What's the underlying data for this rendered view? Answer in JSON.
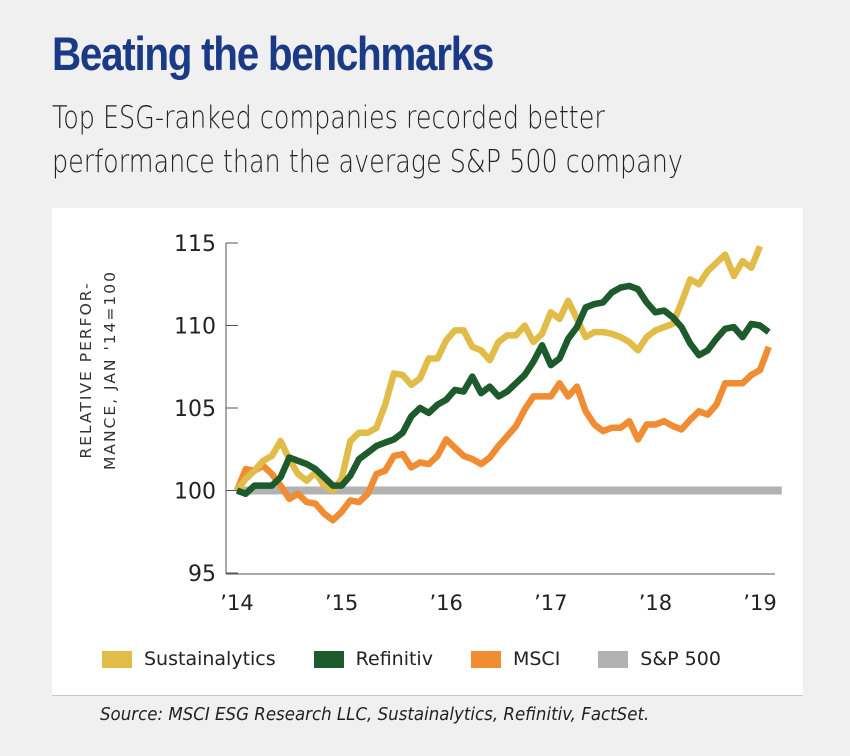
{
  "header": {
    "title": "Beating the benchmarks",
    "subtitle_line1": "Top ESG-ranked companies recorded better",
    "subtitle_line2": "performance than the average S&P 500 company"
  },
  "footer": {
    "source": "Source: MSCI ESG Research LLC, Sustainalytics, Refinitiv, FactSet."
  },
  "chart_data": {
    "type": "line",
    "title": "Beating the benchmarks",
    "subtitle": "Top ESG-ranked companies recorded better performance than the average S&P 500 company",
    "xlabel": "",
    "ylabel_line1": "RELATIVE PERFOR-",
    "ylabel_line2": "MANCE, JAN '14=100",
    "ylim": [
      95,
      115
    ],
    "yticks": [
      95,
      100,
      105,
      110,
      115
    ],
    "ytick_labels": [
      "95",
      "100",
      "105",
      "110",
      "115"
    ],
    "xlim_months": [
      0,
      62.5
    ],
    "xticks_months": [
      0,
      12,
      24,
      36,
      48,
      60
    ],
    "xtick_labels": [
      "’14",
      "’15",
      "’16",
      "’17",
      "’18",
      "’19"
    ],
    "x_unit": "months since Jan 2014 (monthly observations)",
    "grid": false,
    "legend_position": "bottom",
    "series": [
      {
        "name": "Sustainalytics",
        "color": "#e2bc48",
        "values": [
          100,
          100.7,
          101.2,
          101.8,
          102.1,
          103.0,
          101.9,
          101.0,
          100.6,
          101.1,
          100.3,
          100.0,
          100.7,
          103.0,
          103.5,
          103.5,
          103.8,
          105.2,
          107.1,
          107.0,
          106.4,
          106.8,
          108.0,
          108.0,
          109.1,
          109.7,
          109.7,
          108.7,
          108.5,
          107.9,
          109.0,
          109.4,
          109.4,
          110.0,
          109.0,
          109.5,
          110.8,
          110.4,
          111.5,
          110.4,
          109.3,
          109.6,
          109.6,
          109.5,
          109.3,
          109.0,
          108.5,
          109.3,
          109.7,
          109.9,
          110.1,
          111.4,
          112.8,
          112.5,
          113.3,
          113.8,
          114.3,
          113.0,
          113.9,
          113.5,
          114.8
        ]
      },
      {
        "name": "Refinitiv",
        "color": "#1d5a2c",
        "values": [
          100,
          99.8,
          100.3,
          100.3,
          100.3,
          100.8,
          102.0,
          101.8,
          101.6,
          101.3,
          100.8,
          100.3,
          100.3,
          100.9,
          101.9,
          102.3,
          102.7,
          102.9,
          103.1,
          103.5,
          104.5,
          105.0,
          104.7,
          105.2,
          105.5,
          106.1,
          106.0,
          106.9,
          105.9,
          106.3,
          105.7,
          106.0,
          106.5,
          107.0,
          107.8,
          108.8,
          107.6,
          108.0,
          109.2,
          109.9,
          111.1,
          111.3,
          111.4,
          112.0,
          112.3,
          112.4,
          112.2,
          111.4,
          110.8,
          110.9,
          110.5,
          109.9,
          108.9,
          108.2,
          108.5,
          109.2,
          109.8,
          109.9,
          109.3,
          110.1,
          110.0,
          109.6
        ]
      },
      {
        "name": "MSCI",
        "color": "#f08c32",
        "values": [
          100,
          101.3,
          101.2,
          101.5,
          101.0,
          100.3,
          99.5,
          99.8,
          99.3,
          99.2,
          98.6,
          98.2,
          98.7,
          99.4,
          99.3,
          99.8,
          101.0,
          101.2,
          102.1,
          102.2,
          101.4,
          101.7,
          101.6,
          102.1,
          103.1,
          102.6,
          102.1,
          101.9,
          101.6,
          102.0,
          102.7,
          103.3,
          103.9,
          104.9,
          105.7,
          105.7,
          105.7,
          106.5,
          105.7,
          106.3,
          104.8,
          104.0,
          103.6,
          103.8,
          103.8,
          104.2,
          103.1,
          104.0,
          104.0,
          104.2,
          103.9,
          103.7,
          104.3,
          104.8,
          104.6,
          105.2,
          106.5,
          106.5,
          106.5,
          107.0,
          107.3,
          108.7
        ]
      },
      {
        "name": "S&P 500",
        "color": "#b2b2b2",
        "values": [
          100,
          100
        ]
      }
    ]
  }
}
